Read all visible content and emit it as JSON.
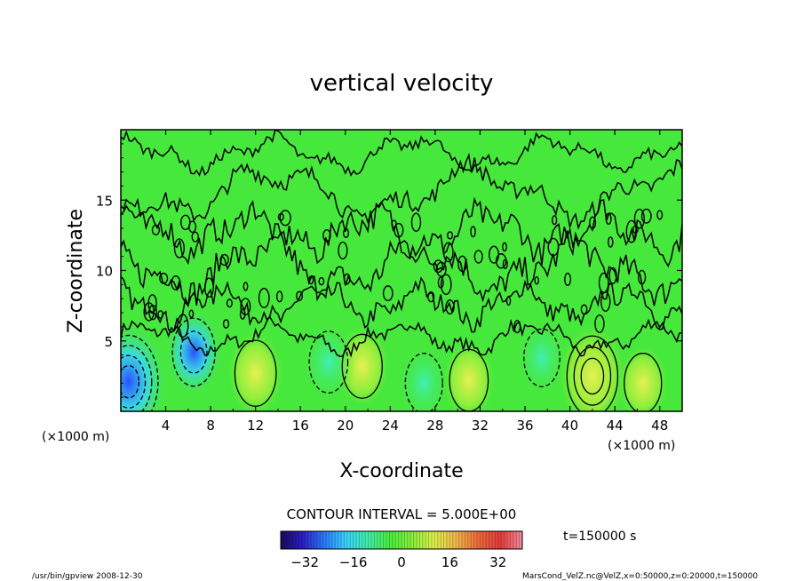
{
  "chart_data": {
    "type": "heatmap",
    "title": "vertical velocity",
    "xlabel": "X-coordinate",
    "ylabel": "Z-coordinate",
    "x_unit": "(×1000 m)",
    "y_unit": "(×1000 m)",
    "xlim": [
      0,
      50
    ],
    "ylim": [
      0,
      20
    ],
    "xticks": [
      4,
      8,
      12,
      16,
      20,
      24,
      28,
      32,
      36,
      40,
      44,
      48
    ],
    "yticks": [
      5,
      10,
      15
    ],
    "contour_interval": "CONTOUR INTERVAL = 5.000E+00",
    "time": "t=150000 s",
    "colorbar": {
      "ticks": [
        -32,
        -16,
        0,
        16,
        32
      ],
      "range": [
        -40,
        40
      ],
      "colors": [
        "#1a0a5c",
        "#2b1fc9",
        "#2d7bff",
        "#38d7ff",
        "#3ff0a6",
        "#48f03c",
        "#8ef03a",
        "#dff04a",
        "#f0b84a",
        "#f06a3a",
        "#e83a3a",
        "#f28da0"
      ]
    },
    "background_color": "#46e83c",
    "features": [
      {
        "kind": "updraft",
        "x": 42.0,
        "z": 2.5,
        "value": 16
      },
      {
        "kind": "updraft",
        "x": 12.0,
        "z": 2.7,
        "value": 9
      },
      {
        "kind": "updraft",
        "x": 21.5,
        "z": 3.2,
        "value": 8
      },
      {
        "kind": "updraft",
        "x": 31.0,
        "z": 2.2,
        "value": 7
      },
      {
        "kind": "updraft",
        "x": 46.5,
        "z": 2.0,
        "value": 6
      },
      {
        "kind": "downdraft",
        "x": 0.7,
        "z": 2.1,
        "value": -22
      },
      {
        "kind": "downdraft",
        "x": 6.5,
        "z": 4.2,
        "value": -10
      },
      {
        "kind": "downdraft",
        "x": 18.5,
        "z": 3.5,
        "value": -7
      },
      {
        "kind": "downdraft",
        "x": 27.0,
        "z": 2.0,
        "value": -6
      },
      {
        "kind": "downdraft",
        "x": 37.5,
        "z": 3.8,
        "value": -5
      }
    ]
  },
  "footer": {
    "left": "/usr/bin/gpview   2008-12-30",
    "right": "MarsCond_VelZ.nc@VelZ,x=0:50000,z=0:20000,t=150000"
  }
}
